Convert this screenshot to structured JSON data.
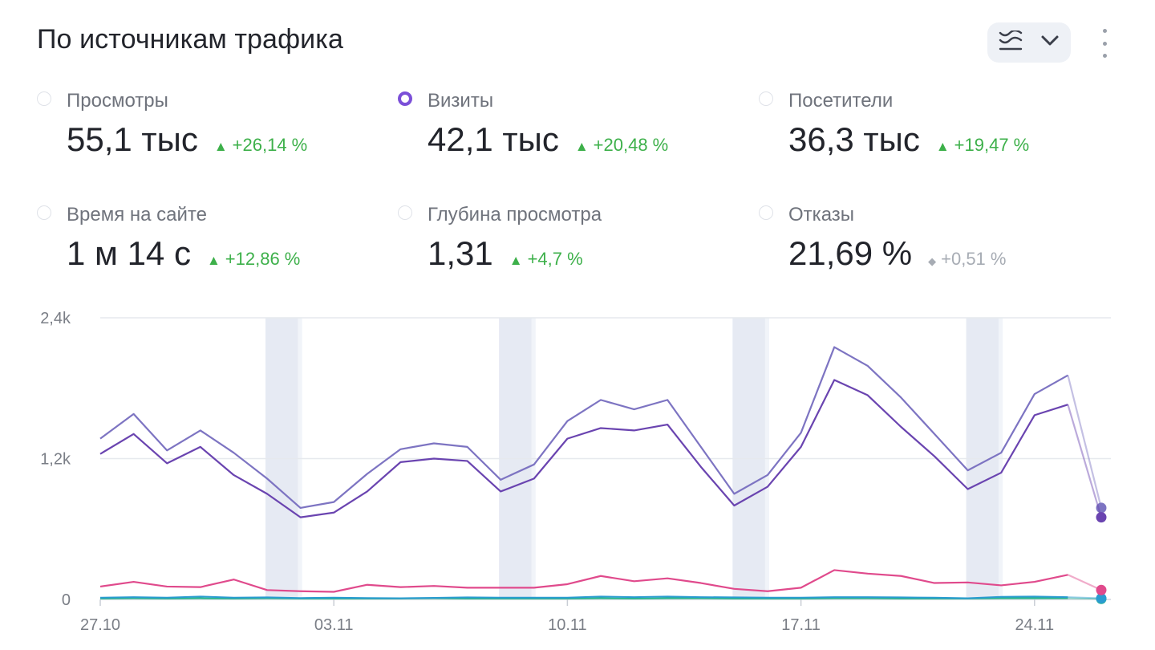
{
  "header": {
    "title": "По источникам трафика"
  },
  "metrics": [
    {
      "label": "Просмотры",
      "value": "55,1 тыс",
      "delta": "+26,14 %",
      "trend": "up",
      "selected": false
    },
    {
      "label": "Визиты",
      "value": "42,1 тыс",
      "delta": "+20,48 %",
      "trend": "up",
      "selected": true
    },
    {
      "label": "Посетители",
      "value": "36,3 тыс",
      "delta": "+19,47 %",
      "trend": "up",
      "selected": false
    },
    {
      "label": "Время на сайте",
      "value": "1 м 14 с",
      "delta": "+12,86 %",
      "trend": "up",
      "selected": false
    },
    {
      "label": "Глубина просмотра",
      "value": "1,31",
      "delta": "+4,7 %",
      "trend": "up",
      "selected": false
    },
    {
      "label": "Отказы",
      "value": "21,69 %",
      "delta": "+0,51 %",
      "trend": "neutral",
      "selected": false
    }
  ],
  "icons": {
    "chart_type": "stacked-lines-icon",
    "dropdown": "chevron-down-icon",
    "more": "more-vertical-icon",
    "up": "▲",
    "neutral": "◆"
  },
  "colors": {
    "accent": "#7b4fd8",
    "up": "#3db04a",
    "neutral": "#a7acb4"
  },
  "chart_data": {
    "type": "line",
    "ylim": [
      0,
      2400
    ],
    "yticks": [
      0,
      1200,
      2400
    ],
    "ytick_labels": [
      "0",
      "1,2k",
      "2,4k"
    ],
    "xticks": [
      "27.10",
      "03.11",
      "10.11",
      "17.11",
      "24.11"
    ],
    "xtick_index": [
      0,
      7,
      14,
      21,
      28
    ],
    "weekend_bands": [
      [
        5,
        6
      ],
      [
        12,
        13
      ],
      [
        19,
        20
      ],
      [
        26,
        27
      ]
    ],
    "grid": true,
    "legend": "none",
    "x": [
      "27.10",
      "28.10",
      "29.10",
      "30.10",
      "31.10",
      "01.11",
      "02.11",
      "03.11",
      "04.11",
      "05.11",
      "06.11",
      "07.11",
      "08.11",
      "09.11",
      "10.11",
      "11.11",
      "12.11",
      "13.11",
      "14.11",
      "15.11",
      "16.11",
      "17.11",
      "18.11",
      "19.11",
      "20.11",
      "21.11",
      "22.11",
      "23.11",
      "24.11",
      "25.11",
      "26.11"
    ],
    "series": [
      {
        "color": "#7d74c2",
        "width": 2.2,
        "values": [
          1370,
          1580,
          1270,
          1440,
          1250,
          1030,
          780,
          830,
          1070,
          1280,
          1330,
          1300,
          1020,
          1150,
          1520,
          1700,
          1620,
          1700,
          1300,
          900,
          1060,
          1420,
          2150,
          1990,
          1720,
          1410,
          1100,
          1250,
          1750,
          1910,
          780
        ]
      },
      {
        "color": "#6a44b0",
        "width": 2.2,
        "values": [
          1240,
          1410,
          1160,
          1300,
          1060,
          900,
          700,
          740,
          920,
          1170,
          1200,
          1180,
          920,
          1030,
          1370,
          1460,
          1440,
          1490,
          1130,
          800,
          960,
          1300,
          1870,
          1740,
          1470,
          1220,
          940,
          1080,
          1570,
          1660,
          700
        ]
      },
      {
        "color": "#e04a8c",
        "width": 2.2,
        "values": [
          110,
          150,
          110,
          105,
          170,
          80,
          70,
          65,
          125,
          105,
          115,
          100,
          100,
          100,
          130,
          200,
          155,
          180,
          140,
          90,
          70,
          100,
          250,
          220,
          200,
          140,
          145,
          120,
          150,
          210,
          80
        ]
      },
      {
        "color": "#2a9bd0",
        "width": 2,
        "values": [
          15,
          20,
          15,
          25,
          15,
          18,
          12,
          15,
          12,
          10,
          14,
          18,
          15,
          15,
          15,
          25,
          20,
          25,
          20,
          18,
          15,
          15,
          20,
          20,
          18,
          15,
          10,
          22,
          25,
          20,
          10
        ]
      },
      {
        "color": "#25b68d",
        "width": 2,
        "values": [
          8,
          10,
          8,
          10,
          8,
          10,
          8,
          8,
          8,
          8,
          10,
          8,
          8,
          8,
          8,
          10,
          8,
          10,
          10,
          8,
          8,
          8,
          10,
          10,
          8,
          8,
          8,
          10,
          10,
          10,
          5
        ]
      }
    ]
  }
}
